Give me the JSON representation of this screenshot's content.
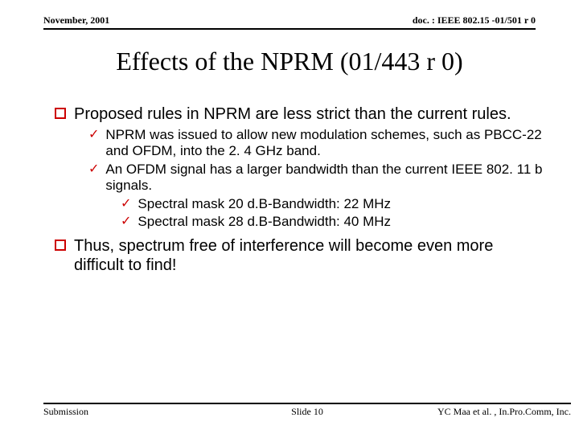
{
  "header": {
    "left": "November, 2001",
    "right": "doc. : IEEE 802.15 -01/501 r 0"
  },
  "title": "Effects of the NPRM (01/443 r 0)",
  "bullets": {
    "b1": "Proposed rules in NPRM are less strict than the current rules.",
    "b1a": "NPRM was issued to allow new modulation schemes, such as PBCC-22 and OFDM, into the 2. 4 GHz band.",
    "b1b": "An OFDM signal has a larger bandwidth than the current IEEE 802. 11 b signals.",
    "b1b1": "Spectral mask 20 d.B-Bandwidth: 22 MHz",
    "b1b2": "Spectral mask 28 d.B-Bandwidth: 40 MHz",
    "b2": "Thus, spectrum free of interference will become even more difficult to find!"
  },
  "footer": {
    "left": "Submission",
    "center": "Slide 10",
    "right": "YC Maa et al. , In.Pro.Comm, Inc."
  },
  "colors": {
    "accent": "#cc0000",
    "text": "#000000",
    "bg": "#ffffff"
  }
}
